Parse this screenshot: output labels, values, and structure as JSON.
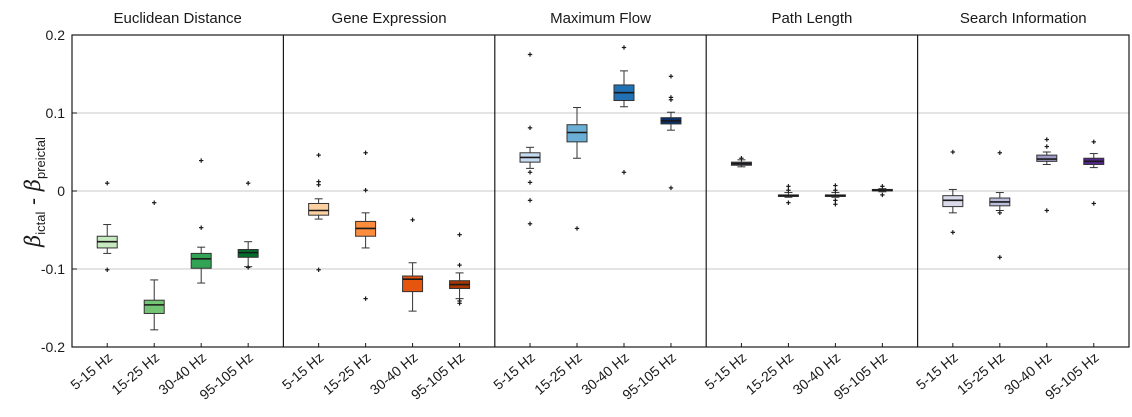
{
  "chart_data": {
    "type": "box",
    "ylabel": {
      "beta": "β",
      "sub1": "ictal",
      "dash": " - ",
      "sub2": "preictal"
    },
    "ylim": [
      -0.2,
      0.2
    ],
    "yticks": [
      0.2,
      0.1,
      0,
      -0.1,
      -0.2
    ],
    "ytick_labels": [
      "0.2",
      "0.1",
      "0",
      "-0.1",
      "-0.2"
    ],
    "grid": true,
    "categories": [
      "5-15 Hz",
      "15-25 Hz",
      "30-40 Hz",
      "95-105 Hz"
    ],
    "panels": [
      {
        "title": "Euclidean Distance",
        "colors": [
          "#c7e9c0",
          "#74c476",
          "#31a354",
          "#006d2c"
        ],
        "boxes": [
          {
            "q1": -0.073,
            "median": -0.065,
            "q3": -0.058,
            "whisker_low": -0.08,
            "whisker_high": -0.043,
            "outliers": [
              0.01,
              -0.101
            ]
          },
          {
            "q1": -0.157,
            "median": -0.146,
            "q3": -0.14,
            "whisker_low": -0.178,
            "whisker_high": -0.114,
            "outliers": [
              -0.015
            ]
          },
          {
            "q1": -0.099,
            "median": -0.087,
            "q3": -0.08,
            "whisker_low": -0.118,
            "whisker_high": -0.072,
            "outliers": [
              0.039,
              -0.047
            ]
          },
          {
            "q1": -0.085,
            "median": -0.079,
            "q3": -0.075,
            "whisker_low": -0.097,
            "whisker_high": -0.065,
            "outliers": [
              0.01,
              -0.098
            ]
          }
        ]
      },
      {
        "title": "Gene Expression",
        "colors": [
          "#fdd0a2",
          "#fd8d3c",
          "#e6550d",
          "#a63603"
        ],
        "boxes": [
          {
            "q1": -0.031,
            "median": -0.025,
            "q3": -0.016,
            "whisker_low": -0.036,
            "whisker_high": -0.01,
            "outliers": [
              0.046,
              0.012,
              0.008,
              -0.101
            ]
          },
          {
            "q1": -0.058,
            "median": -0.048,
            "q3": -0.039,
            "whisker_low": -0.073,
            "whisker_high": -0.028,
            "outliers": [
              0.049,
              0.001,
              -0.138
            ]
          },
          {
            "q1": -0.129,
            "median": -0.113,
            "q3": -0.109,
            "whisker_low": -0.154,
            "whisker_high": -0.092,
            "outliers": [
              -0.037
            ]
          },
          {
            "q1": -0.125,
            "median": -0.12,
            "q3": -0.115,
            "whisker_low": -0.138,
            "whisker_high": -0.105,
            "outliers": [
              -0.056,
              -0.095,
              -0.141,
              -0.144
            ]
          }
        ]
      },
      {
        "title": "Maximum Flow",
        "colors": [
          "#c6dbef",
          "#6baed6",
          "#2171b5",
          "#08306b"
        ],
        "boxes": [
          {
            "q1": 0.037,
            "median": 0.043,
            "q3": 0.049,
            "whisker_low": 0.029,
            "whisker_high": 0.056,
            "outliers": [
              0.175,
              0.081,
              0.024,
              0.011,
              -0.012,
              -0.042
            ]
          },
          {
            "q1": 0.063,
            "median": 0.075,
            "q3": 0.085,
            "whisker_low": 0.042,
            "whisker_high": 0.107,
            "outliers": [
              -0.048
            ]
          },
          {
            "q1": 0.116,
            "median": 0.126,
            "q3": 0.136,
            "whisker_low": 0.108,
            "whisker_high": 0.154,
            "outliers": [
              0.184,
              0.024
            ]
          },
          {
            "q1": 0.086,
            "median": 0.09,
            "q3": 0.094,
            "whisker_low": 0.078,
            "whisker_high": 0.101,
            "outliers": [
              0.147,
              0.12,
              0.117,
              0.004
            ]
          }
        ]
      },
      {
        "title": "Path Length",
        "colors": [
          "#3f3f55",
          "#3f3f55",
          "#3f3f55",
          "#3f3f55"
        ],
        "boxes": [
          {
            "q1": 0.033,
            "median": 0.035,
            "q3": 0.037,
            "whisker_low": 0.031,
            "whisker_high": 0.04,
            "outliers": [
              0.042
            ]
          },
          {
            "q1": -0.007,
            "median": -0.006,
            "q3": -0.005,
            "whisker_low": -0.008,
            "whisker_high": -0.002,
            "outliers": [
              0.006,
              0.001,
              -0.015
            ]
          },
          {
            "q1": -0.007,
            "median": -0.006,
            "q3": -0.005,
            "whisker_low": -0.008,
            "whisker_high": -0.002,
            "outliers": [
              0.007,
              0.001,
              -0.012,
              -0.017
            ]
          },
          {
            "q1": 0.0,
            "median": 0.001,
            "q3": 0.002,
            "whisker_low": -0.001,
            "whisker_high": 0.003,
            "outliers": [
              0.006,
              -0.005
            ]
          }
        ]
      },
      {
        "title": "Search Information",
        "colors": [
          "#dadaeb",
          "#bcbddc",
          "#9e9ac8",
          "#54278f"
        ],
        "boxes": [
          {
            "q1": -0.02,
            "median": -0.012,
            "q3": -0.006,
            "whisker_low": -0.028,
            "whisker_high": 0.002,
            "outliers": [
              0.05,
              -0.053
            ]
          },
          {
            "q1": -0.019,
            "median": -0.014,
            "q3": -0.009,
            "whisker_low": -0.025,
            "whisker_high": -0.002,
            "outliers": [
              0.049,
              -0.028,
              -0.085
            ]
          },
          {
            "q1": 0.038,
            "median": 0.041,
            "q3": 0.046,
            "whisker_low": 0.034,
            "whisker_high": 0.05,
            "outliers": [
              0.066,
              0.057,
              -0.025
            ]
          },
          {
            "q1": 0.034,
            "median": 0.038,
            "q3": 0.042,
            "whisker_low": 0.03,
            "whisker_high": 0.048,
            "outliers": [
              0.063,
              -0.016
            ]
          }
        ]
      }
    ]
  }
}
